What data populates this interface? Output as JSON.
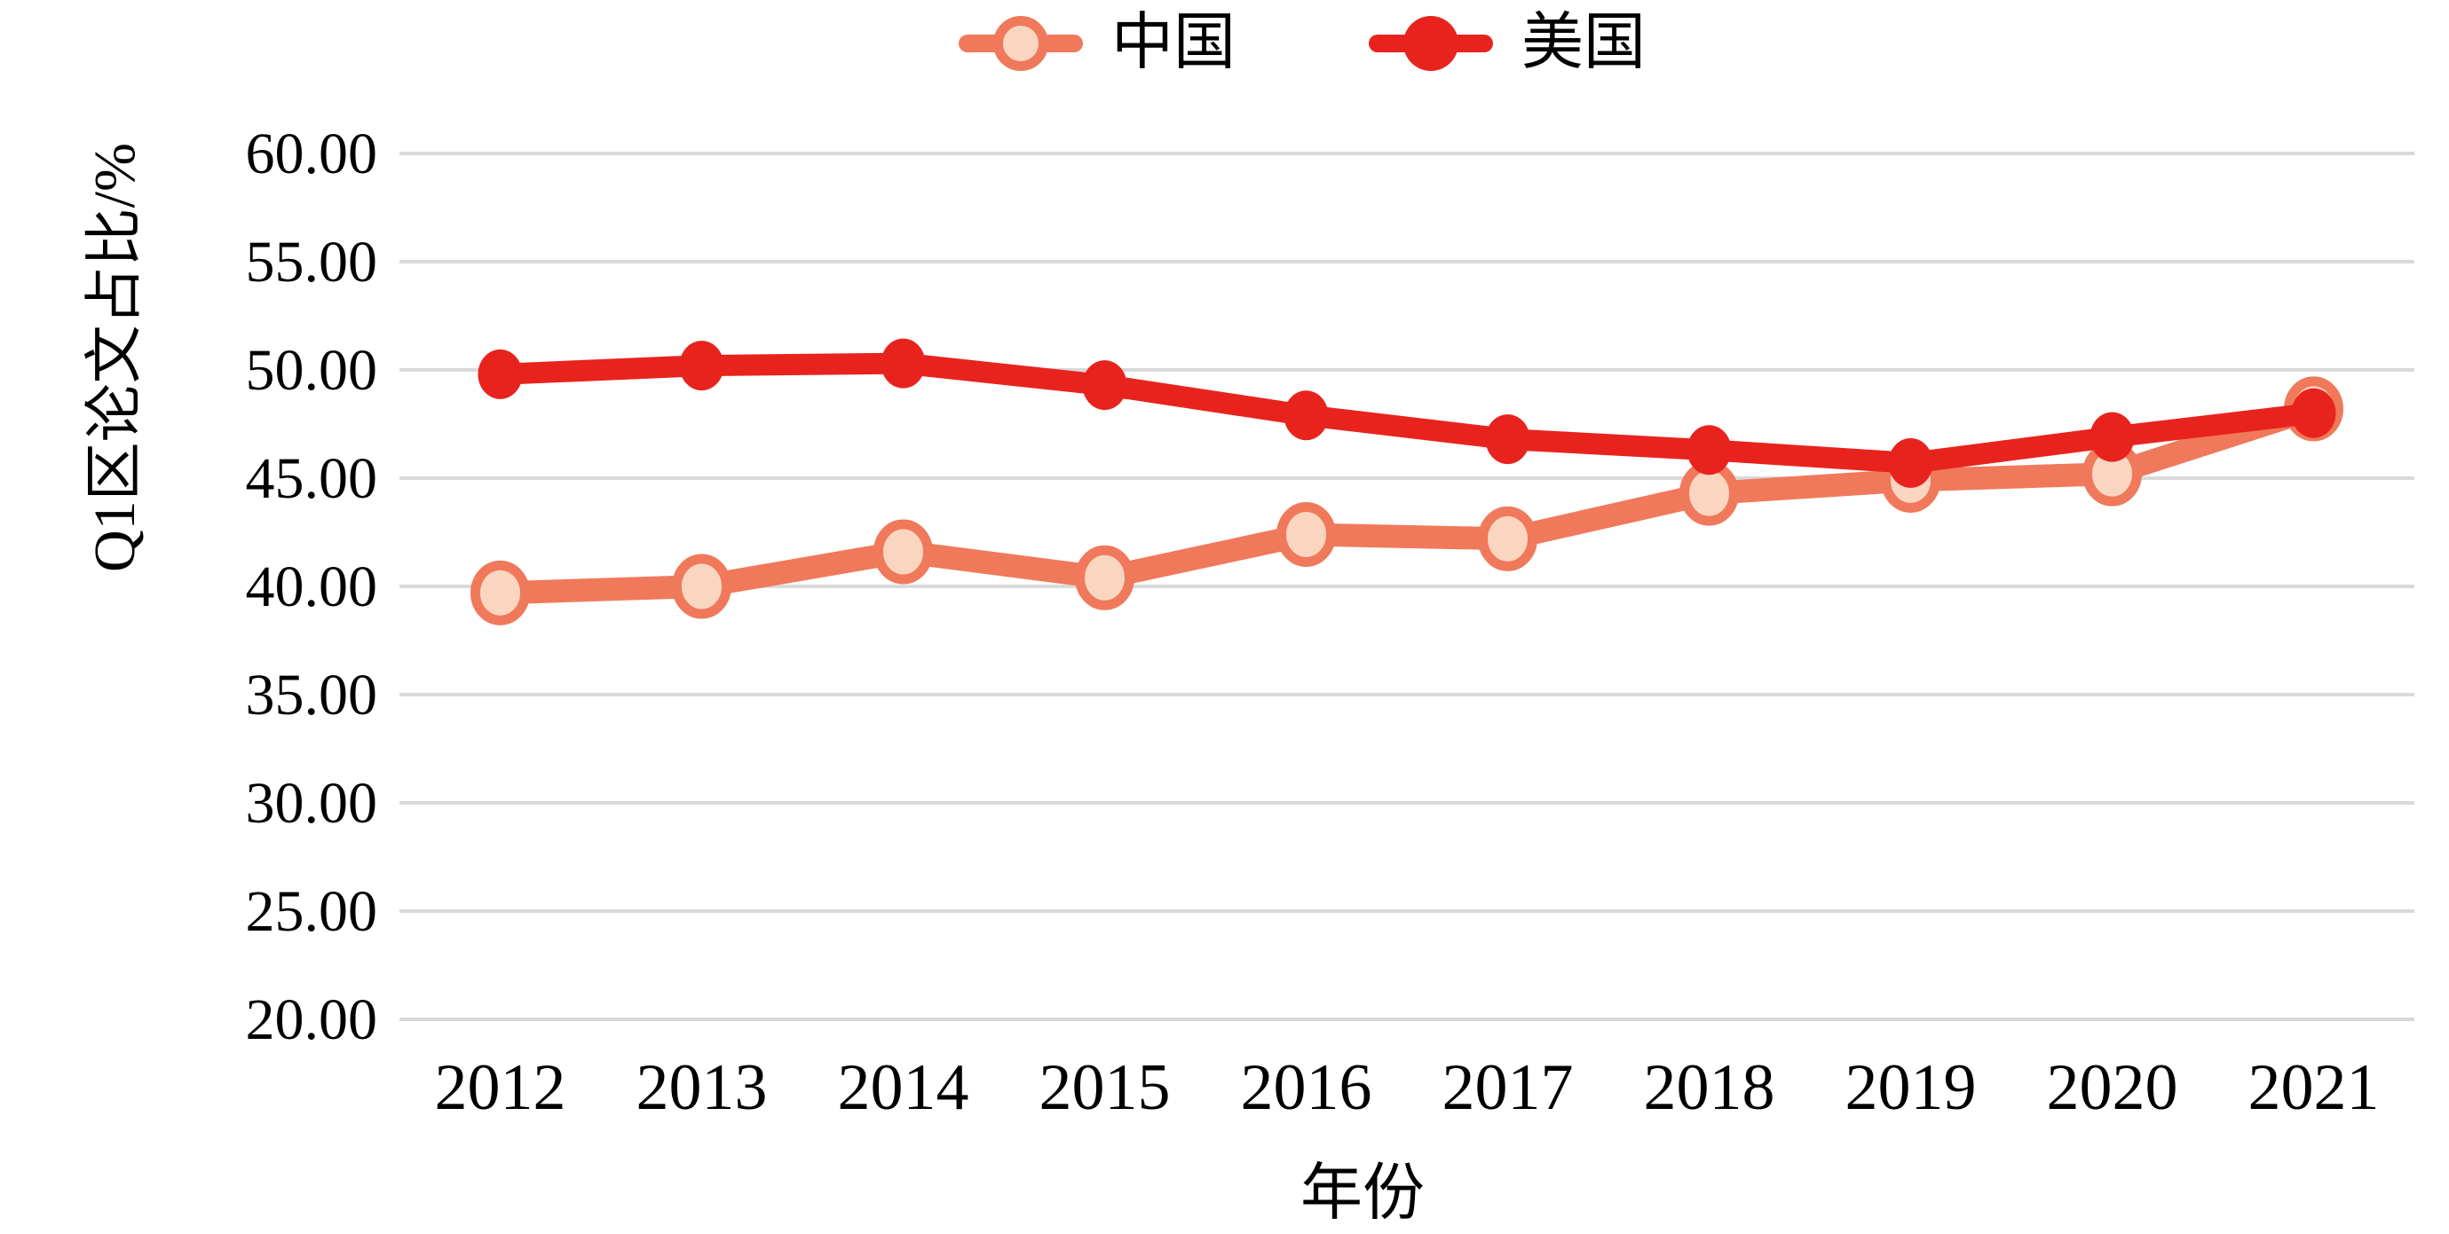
{
  "chart_data": {
    "type": "line",
    "title": "",
    "xlabel": "年份",
    "ylabel": "Q1区论文占比/%",
    "categories": [
      "2012",
      "2013",
      "2014",
      "2015",
      "2016",
      "2017",
      "2018",
      "2019",
      "2020",
      "2021"
    ],
    "series": [
      {
        "name": "中国",
        "values": [
          39.7,
          40.0,
          41.6,
          40.4,
          42.4,
          42.2,
          44.3,
          44.9,
          45.2,
          48.2
        ],
        "line_color": "#F0795B",
        "marker_fill": "#FAD6C1",
        "marker_stroke": "#F0795B"
      },
      {
        "name": "美国",
        "values": [
          49.8,
          50.2,
          50.3,
          49.3,
          47.9,
          46.8,
          46.3,
          45.7,
          46.9,
          48.0
        ],
        "line_color": "#E8231E",
        "marker_fill": "#E8231E",
        "marker_stroke": "#E8231E"
      }
    ],
    "ylim": [
      20,
      60
    ],
    "ytick_step": 5,
    "ytick_labels": [
      "60.00",
      "55.00",
      "50.00",
      "45.00",
      "40.00",
      "35.00",
      "30.00",
      "25.00",
      "20.00"
    ],
    "grid": true,
    "gridline_color": "#D9D9D9",
    "text_color": "#000000",
    "legend_position": "top"
  }
}
